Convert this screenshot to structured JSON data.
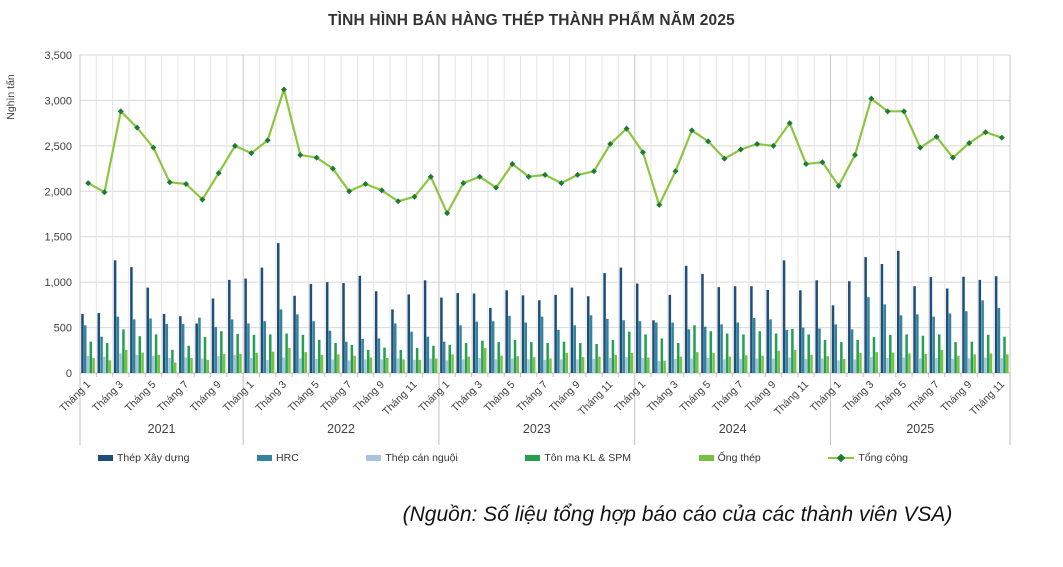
{
  "page": {
    "source_note": "(Nguồn: Số liệu tổng hợp báo cáo của các thành viên VSA)"
  },
  "chart_data": {
    "type": "bar+line",
    "title": "TÌNH HÌNH BÁN HÀNG THÉP THÀNH PHẨM NĂM 2025",
    "y_axis_title": "Nghìn tấn",
    "ylim": [
      0,
      3500
    ],
    "y_tick_step": 500,
    "y_ticks": [
      "0",
      "500",
      "1,000",
      "1,500",
      "2,000",
      "2,500",
      "3,000",
      "3,500"
    ],
    "grid": true,
    "legend_position": "bottom",
    "x_axis": {
      "month_prefix": "Tháng",
      "labeled_months": "odd (Tháng 1, 3, 5, 7, 9, 11)",
      "years": [
        {
          "label": "2021",
          "n_months": 10
        },
        {
          "label": "2022",
          "n_months": 12
        },
        {
          "label": "2023",
          "n_months": 12
        },
        {
          "label": "2024",
          "n_months": 12
        },
        {
          "label": "2025",
          "n_months": 11
        }
      ]
    },
    "series": [
      {
        "name": "Thép Xây dựng",
        "type": "bar",
        "color": "#1F4E79",
        "values": [
          650,
          660,
          1240,
          1165,
          940,
          650,
          625,
          545,
          820,
          1025,
          1040,
          1160,
          1430,
          850,
          980,
          1000,
          990,
          1070,
          900,
          700,
          865,
          1020,
          830,
          880,
          875,
          715,
          910,
          855,
          800,
          860,
          940,
          845,
          1100,
          1160,
          985,
          580,
          860,
          1180,
          1090,
          945,
          955,
          955,
          915,
          1240,
          910,
          1020,
          745,
          1010,
          1275,
          1200,
          1345,
          955,
          1055,
          930,
          1060,
          1025,
          1065
        ]
      },
      {
        "name": "HRC",
        "type": "bar",
        "color": "#31859C",
        "values": [
          525,
          400,
          620,
          590,
          600,
          540,
          540,
          610,
          505,
          590,
          545,
          570,
          700,
          645,
          570,
          465,
          345,
          375,
          380,
          545,
          455,
          400,
          345,
          525,
          565,
          570,
          630,
          555,
          620,
          475,
          525,
          635,
          595,
          580,
          570,
          555,
          555,
          480,
          510,
          535,
          555,
          605,
          590,
          475,
          500,
          490,
          535,
          480,
          835,
          755,
          635,
          645,
          620,
          655,
          680,
          800,
          715
        ]
      },
      {
        "name": "Thép cán nguội",
        "type": "bar",
        "color": "#A8C3DC",
        "values": [
          190,
          180,
          215,
          200,
          190,
          165,
          170,
          160,
          185,
          200,
          165,
          145,
          170,
          160,
          155,
          150,
          140,
          150,
          150,
          160,
          145,
          160,
          140,
          150,
          165,
          150,
          160,
          150,
          145,
          150,
          150,
          155,
          165,
          175,
          165,
          130,
          155,
          160,
          165,
          150,
          155,
          160,
          160,
          170,
          155,
          160,
          140,
          150,
          175,
          165,
          170,
          160,
          165,
          155,
          160,
          170,
          165
        ]
      },
      {
        "name": "Tôn mạ KL & SPM",
        "type": "bar",
        "color": "#26A04F",
        "values": [
          345,
          330,
          480,
          405,
          425,
          255,
          300,
          395,
          460,
          430,
          420,
          425,
          435,
          420,
          365,
          330,
          310,
          255,
          280,
          255,
          275,
          300,
          310,
          330,
          355,
          340,
          365,
          340,
          330,
          345,
          330,
          320,
          365,
          455,
          425,
          380,
          330,
          525,
          460,
          435,
          425,
          460,
          435,
          485,
          425,
          365,
          340,
          365,
          395,
          420,
          425,
          410,
          425,
          340,
          345,
          420,
          400
        ]
      },
      {
        "name": "Ống thép",
        "type": "bar",
        "color": "#76C144",
        "values": [
          165,
          140,
          255,
          225,
          200,
          115,
          165,
          145,
          210,
          210,
          220,
          235,
          275,
          230,
          200,
          205,
          190,
          170,
          165,
          150,
          145,
          160,
          205,
          180,
          275,
          190,
          185,
          175,
          160,
          220,
          175,
          180,
          200,
          220,
          170,
          135,
          180,
          230,
          220,
          180,
          195,
          190,
          245,
          255,
          200,
          185,
          155,
          220,
          230,
          225,
          215,
          210,
          255,
          190,
          205,
          215,
          205
        ]
      },
      {
        "name": "Tổng cộng",
        "type": "line",
        "color": "#8CC63F",
        "marker_color": "#1E7B34",
        "values": [
          2090,
          1990,
          2880,
          2700,
          2480,
          2100,
          2080,
          1910,
          2200,
          2500,
          2420,
          2560,
          3120,
          2400,
          2370,
          2250,
          2000,
          2080,
          2010,
          1890,
          1940,
          2160,
          1760,
          2090,
          2160,
          2040,
          2300,
          2160,
          2180,
          2090,
          2180,
          2220,
          2520,
          2690,
          2430,
          1850,
          2220,
          2670,
          2550,
          2360,
          2460,
          2520,
          2500,
          2750,
          2300,
          2320,
          2060,
          2400,
          3020,
          2880,
          2880,
          2480,
          2600,
          2370,
          2530,
          2650,
          2590
        ]
      }
    ]
  }
}
